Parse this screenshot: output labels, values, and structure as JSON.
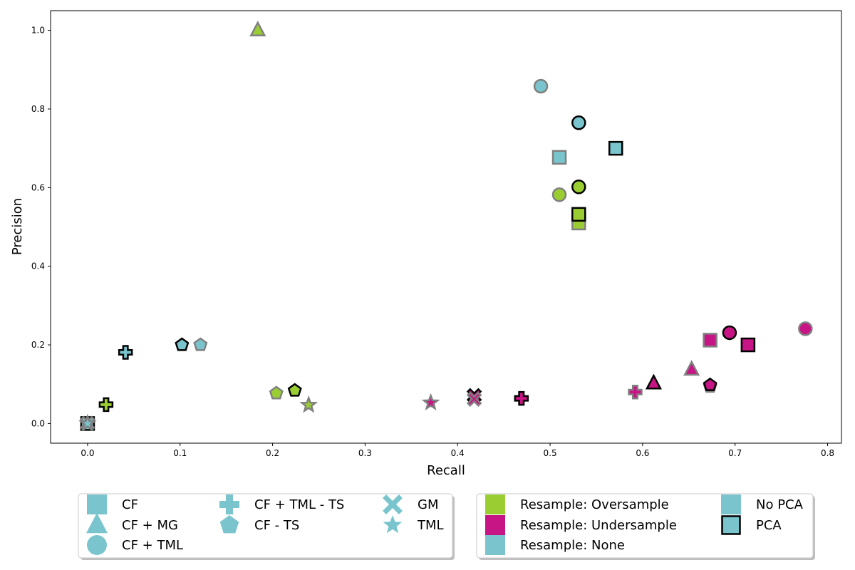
{
  "chart_data": {
    "type": "scatter",
    "xlabel": "Recall",
    "ylabel": "Precision",
    "xlim": [
      -0.04,
      0.815
    ],
    "ylim": [
      -0.05,
      1.05
    ],
    "x_ticks": [
      0.0,
      0.1,
      0.2,
      0.3,
      0.4,
      0.5,
      0.6,
      0.7,
      0.8
    ],
    "x_tick_labels": [
      "0.0",
      "0.1",
      "0.2",
      "0.3",
      "0.4",
      "0.5",
      "0.6",
      "0.7",
      "0.8"
    ],
    "y_ticks": [
      0.0,
      0.2,
      0.4,
      0.6,
      0.8,
      1.0
    ],
    "y_tick_labels": [
      "0.0",
      "0.2",
      "0.4",
      "0.6",
      "0.8",
      "1.0"
    ],
    "grid": false,
    "colors": {
      "Oversample": "#9acd32",
      "Undersample": "#c71585",
      "None": "#7ac5cd"
    },
    "edge_colors": {
      "No PCA": "#808080",
      "PCA": "#000000"
    },
    "points": [
      {
        "method": "CF + MG",
        "resample": "Oversample",
        "pca": "No PCA",
        "x": 0.184,
        "y": 1.0
      },
      {
        "method": "CF + TML",
        "resample": "None",
        "pca": "No PCA",
        "x": 0.49,
        "y": 0.858
      },
      {
        "method": "CF + TML",
        "resample": "None",
        "pca": "PCA",
        "x": 0.531,
        "y": 0.765
      },
      {
        "method": "CF",
        "resample": "None",
        "pca": "PCA",
        "x": 0.571,
        "y": 0.7
      },
      {
        "method": "CF",
        "resample": "None",
        "pca": "No PCA",
        "x": 0.51,
        "y": 0.677
      },
      {
        "method": "CF + TML",
        "resample": "Oversample",
        "pca": "PCA",
        "x": 0.531,
        "y": 0.602
      },
      {
        "method": "CF + TML",
        "resample": "Oversample",
        "pca": "No PCA",
        "x": 0.51,
        "y": 0.582
      },
      {
        "method": "CF",
        "resample": "Oversample",
        "pca": "No PCA",
        "x": 0.531,
        "y": 0.51
      },
      {
        "method": "CF",
        "resample": "Oversample",
        "pca": "PCA",
        "x": 0.531,
        "y": 0.532
      },
      {
        "method": "CF + TML",
        "resample": "Undersample",
        "pca": "No PCA",
        "x": 0.776,
        "y": 0.241
      },
      {
        "method": "CF + TML",
        "resample": "Undersample",
        "pca": "PCA",
        "x": 0.694,
        "y": 0.231
      },
      {
        "method": "CF",
        "resample": "Undersample",
        "pca": "No PCA",
        "x": 0.673,
        "y": 0.212
      },
      {
        "method": "CF",
        "resample": "Undersample",
        "pca": "PCA",
        "x": 0.714,
        "y": 0.2
      },
      {
        "method": "CF - TS",
        "resample": "None",
        "pca": "PCA",
        "x": 0.102,
        "y": 0.2
      },
      {
        "method": "CF - TS",
        "resample": "None",
        "pca": "No PCA",
        "x": 0.122,
        "y": 0.2
      },
      {
        "method": "CF + TML - TS",
        "resample": "None",
        "pca": "PCA",
        "x": 0.041,
        "y": 0.181
      },
      {
        "method": "CF + MG",
        "resample": "Undersample",
        "pca": "No PCA",
        "x": 0.653,
        "y": 0.137
      },
      {
        "method": "CF + MG",
        "resample": "Undersample",
        "pca": "PCA",
        "x": 0.612,
        "y": 0.102
      },
      {
        "method": "CF - TS",
        "resample": "Undersample",
        "pca": "No PCA",
        "x": 0.673,
        "y": 0.094
      },
      {
        "method": "CF - TS",
        "resample": "Undersample",
        "pca": "PCA",
        "x": 0.673,
        "y": 0.098
      },
      {
        "method": "CF - TS",
        "resample": "Oversample",
        "pca": "PCA",
        "x": 0.224,
        "y": 0.084
      },
      {
        "method": "CF + TML - TS",
        "resample": "Undersample",
        "pca": "No PCA",
        "x": 0.592,
        "y": 0.08
      },
      {
        "method": "CF - TS",
        "resample": "Oversample",
        "pca": "No PCA",
        "x": 0.204,
        "y": 0.077
      },
      {
        "method": "GM",
        "resample": "Undersample",
        "pca": "PCA",
        "x": 0.418,
        "y": 0.071
      },
      {
        "method": "CF + TML - TS",
        "resample": "Undersample",
        "pca": "PCA",
        "x": 0.469,
        "y": 0.064
      },
      {
        "method": "GM",
        "resample": "Undersample",
        "pca": "No PCA",
        "x": 0.418,
        "y": 0.062
      },
      {
        "method": "TML",
        "resample": "Undersample",
        "pca": "No PCA",
        "x": 0.371,
        "y": 0.053
      },
      {
        "method": "CF + TML - TS",
        "resample": "Oversample",
        "pca": "PCA",
        "x": 0.02,
        "y": 0.048
      },
      {
        "method": "TML",
        "resample": "Oversample",
        "pca": "No PCA",
        "x": 0.239,
        "y": 0.047
      },
      {
        "method": "CF",
        "resample": "None",
        "pca": "PCA",
        "x": 0.0,
        "y": 0.0
      },
      {
        "method": "GM",
        "resample": "None",
        "pca": "PCA",
        "x": 0.0,
        "y": 0.0
      },
      {
        "method": "GM",
        "resample": "None",
        "pca": "No PCA",
        "x": 0.0,
        "y": 0.0
      },
      {
        "method": "TML",
        "resample": "None",
        "pca": "No PCA",
        "x": 0.0,
        "y": 0.0
      }
    ],
    "legend_method": [
      "CF",
      "CF + MG",
      "CF + TML",
      "CF + TML - TS",
      "CF - TS",
      "GM",
      "TML"
    ],
    "legend_method_markers": [
      "square",
      "triangle",
      "circle",
      "plus",
      "pentagon",
      "x",
      "star"
    ],
    "legend_resample": [
      "Resample: Oversample",
      "Resample: Undersample",
      "Resample: None"
    ],
    "legend_resample_keys": [
      "Oversample",
      "Undersample",
      "None"
    ],
    "legend_pca": [
      "No PCA",
      "PCA"
    ],
    "legend_placement": "bottom, below the axes"
  }
}
